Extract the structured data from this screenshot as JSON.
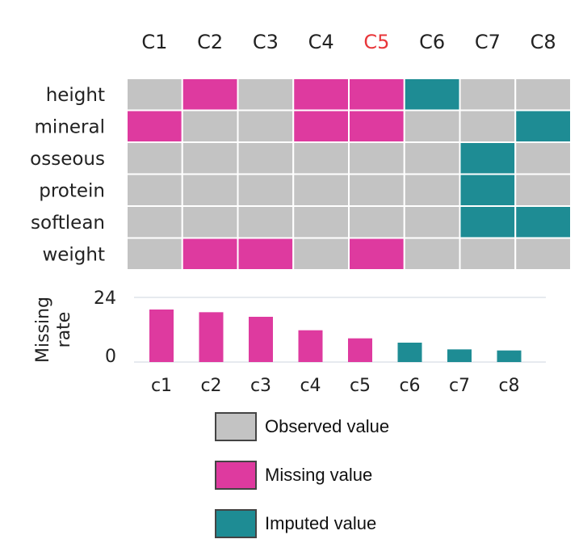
{
  "colors": {
    "observed": "#c3c3c3",
    "missing": "#de3a9f",
    "imputed": "#1e8c94",
    "highlight": "#e8363a",
    "text": "#222222"
  },
  "chart_data": [
    {
      "type": "heatmap",
      "columns": [
        "C1",
        "C2",
        "C3",
        "C4",
        "C5",
        "C6",
        "C7",
        "C8"
      ],
      "highlighted_column": "C5",
      "rows": [
        {
          "label": "height",
          "cells": [
            "observed",
            "missing",
            "observed",
            "missing",
            "missing",
            "imputed",
            "observed",
            "observed"
          ]
        },
        {
          "label": "mineral",
          "cells": [
            "missing",
            "observed",
            "observed",
            "missing",
            "missing",
            "observed",
            "observed",
            "imputed"
          ]
        },
        {
          "label": "osseous",
          "cells": [
            "observed",
            "observed",
            "observed",
            "observed",
            "observed",
            "observed",
            "imputed",
            "observed"
          ]
        },
        {
          "label": "protein",
          "cells": [
            "observed",
            "observed",
            "observed",
            "observed",
            "observed",
            "observed",
            "imputed",
            "observed"
          ]
        },
        {
          "label": "softlean",
          "cells": [
            "observed",
            "observed",
            "observed",
            "observed",
            "observed",
            "observed",
            "imputed",
            "imputed"
          ]
        },
        {
          "label": "weight",
          "cells": [
            "observed",
            "missing",
            "missing",
            "observed",
            "missing",
            "observed",
            "observed",
            "observed"
          ]
        }
      ]
    },
    {
      "type": "bar",
      "ylabel": "Missing rate",
      "ylim": [
        0,
        24
      ],
      "yticks": [
        "24",
        "0"
      ],
      "categories": [
        "c1",
        "c2",
        "c3",
        "c4",
        "c5",
        "c6",
        "c7",
        "c8"
      ],
      "values": [
        19.5,
        18.5,
        16.8,
        11.8,
        8.8,
        7.2,
        4.7,
        4.3
      ],
      "bar_states": [
        "missing",
        "missing",
        "missing",
        "missing",
        "missing",
        "imputed",
        "imputed",
        "imputed"
      ]
    }
  ],
  "legend": [
    {
      "label": "Observed value",
      "state": "observed"
    },
    {
      "label": "Missing value",
      "state": "missing"
    },
    {
      "label": "Imputed value",
      "state": "imputed"
    }
  ]
}
